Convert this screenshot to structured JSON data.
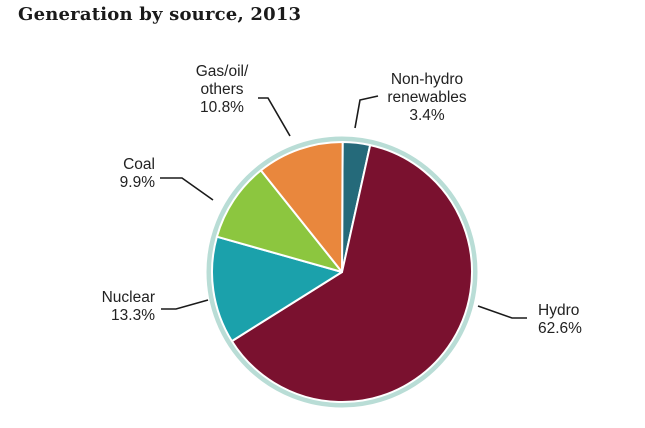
{
  "title": "Generation by source, 2013",
  "chart_data": {
    "type": "pie",
    "title": "Generation by source, 2013",
    "slices": [
      {
        "name": "Non-hydro renewables",
        "label_lines": [
          "Non-hydro",
          "renewables"
        ],
        "value": 3.4,
        "value_label": "3.4%",
        "color": "#256a7a"
      },
      {
        "name": "Hydro",
        "label_lines": [
          "Hydro"
        ],
        "value": 62.6,
        "value_label": "62.6%",
        "color": "#7a112f"
      },
      {
        "name": "Nuclear",
        "label_lines": [
          "Nuclear"
        ],
        "value": 13.3,
        "value_label": "13.3%",
        "color": "#1ba1ab"
      },
      {
        "name": "Coal",
        "label_lines": [
          "Coal"
        ],
        "value": 9.9,
        "value_label": "9.9%",
        "color": "#8cc63f"
      },
      {
        "name": "Gas/oil/others",
        "label_lines": [
          "Gas/oil/",
          "others"
        ],
        "value": 10.8,
        "value_label": "10.8%",
        "color": "#e9873d"
      }
    ],
    "ring_color": "#b9ddd6"
  }
}
